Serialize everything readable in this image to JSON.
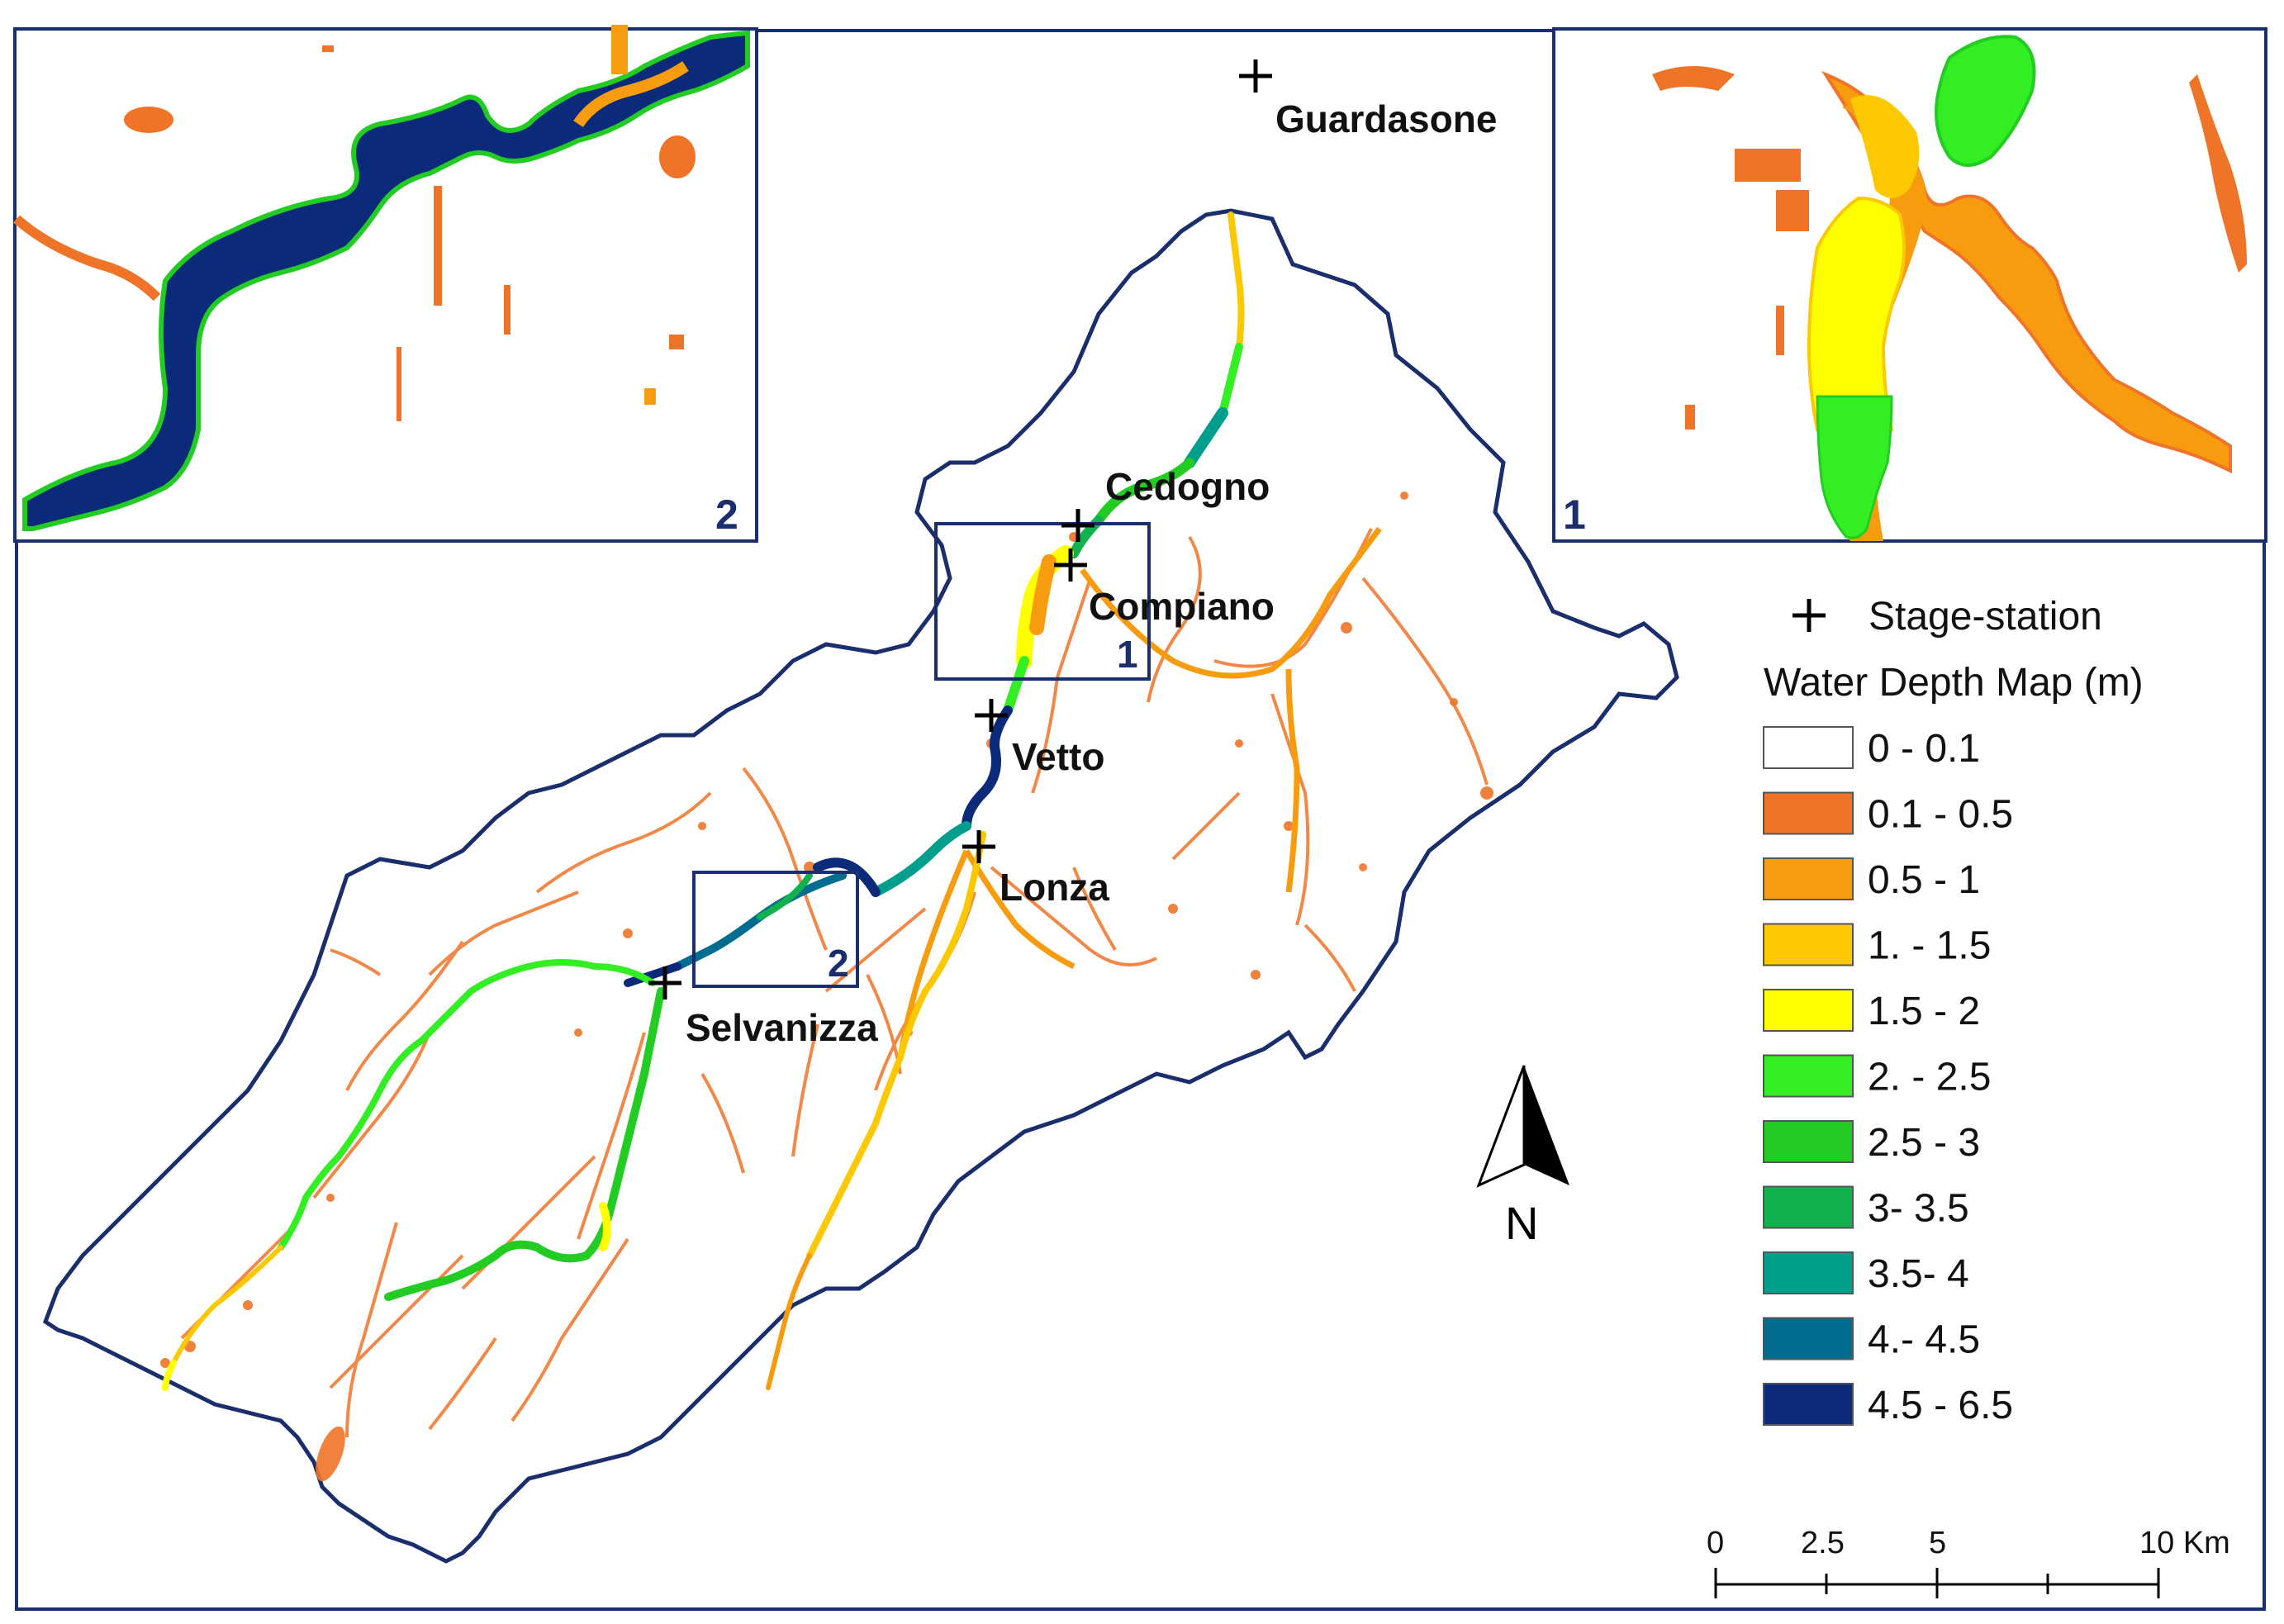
{
  "map": {
    "inset_labels": {
      "inset_left": "2",
      "inset_right": "1",
      "box_compiano": "1",
      "box_selvanizza": "2"
    },
    "stations": [
      {
        "name": "Guardasone"
      },
      {
        "name": "Cedogno"
      },
      {
        "name": "Compiano"
      },
      {
        "name": "Vetto"
      },
      {
        "name": "Lonza"
      },
      {
        "name": "Selvanizza"
      }
    ],
    "north_arrow": {
      "label": "N"
    },
    "scale_bar": {
      "ticks": [
        "0",
        "2.5",
        "5",
        "10 Km"
      ]
    }
  },
  "legend": {
    "stage_station_label": "Stage-station",
    "title": "Water Depth Map (m)",
    "classes": [
      {
        "label": "0 - 0.1",
        "color": "#ffffff"
      },
      {
        "label": "0.1 - 0.5",
        "color": "#f07427"
      },
      {
        "label": "0.5 - 1",
        "color": "#f89c0f"
      },
      {
        "label": "1. - 1.5",
        "color": "#fcc800"
      },
      {
        "label": "1.5 - 2",
        "color": "#ffff00"
      },
      {
        "label": "2. - 2.5",
        "color": "#33ee22"
      },
      {
        "label": "2.5 - 3",
        "color": "#22cc22"
      },
      {
        "label": "3- 3.5",
        "color": "#11b24e"
      },
      {
        "label": "3.5- 4",
        "color": "#009e8c"
      },
      {
        "label": "4.- 4.5",
        "color": "#006c8f"
      },
      {
        "label": "4.5 - 6.5",
        "color": "#0b2a7a"
      }
    ]
  },
  "colors": {
    "boundary": "#1a2e6b",
    "station_marker": "#000000"
  }
}
